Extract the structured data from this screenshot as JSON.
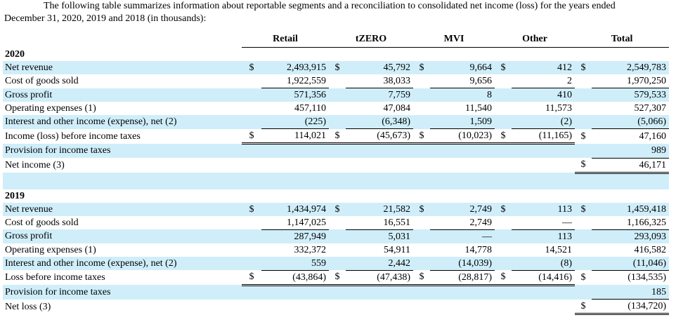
{
  "intro": {
    "line1": "The following table summarizes information about reportable segments and a reconciliation to consolidated net income (loss) for the years ended",
    "line2": "December 31, 2020, 2019 and 2018 (in thousands):"
  },
  "columns": [
    "Retail",
    "tZERO",
    "MVI",
    "Other",
    "Total"
  ],
  "currency_symbol": "$",
  "sections": [
    {
      "year": "2020",
      "rows": [
        {
          "label": "Net revenue",
          "values": [
            "2,493,915",
            "45,792",
            "9,664",
            "412",
            "2,549,783"
          ]
        },
        {
          "label": "Cost of goods sold",
          "values": [
            "1,922,559",
            "38,033",
            "9,656",
            "2",
            "1,970,250"
          ]
        },
        {
          "label": "Gross profit",
          "values": [
            "571,356",
            "7,759",
            "8",
            "410",
            "579,533"
          ]
        },
        {
          "label": "Operating expenses (1)",
          "values": [
            "457,110",
            "47,084",
            "11,540",
            "11,573",
            "527,307"
          ]
        },
        {
          "label": "Interest and other income (expense), net (2)",
          "values": [
            "(225)",
            "(6,348)",
            "1,509",
            "(2)",
            "(5,066)"
          ]
        },
        {
          "label": "Income (loss) before income taxes",
          "values": [
            "114,021",
            "(45,673)",
            "(10,023)",
            "(11,165)",
            "47,160"
          ]
        },
        {
          "label": "Provision for income taxes",
          "values": [
            "",
            "",
            "",
            "",
            "989"
          ]
        },
        {
          "label": "Net income (3)",
          "values": [
            "",
            "",
            "",
            "",
            "46,171"
          ]
        }
      ]
    },
    {
      "year": "2019",
      "rows": [
        {
          "label": "Net revenue",
          "values": [
            "1,434,974",
            "21,582",
            "2,749",
            "113",
            "1,459,418"
          ]
        },
        {
          "label": "Cost of goods sold",
          "values": [
            "1,147,025",
            "16,551",
            "2,749",
            "—",
            "1,166,325"
          ]
        },
        {
          "label": "Gross profit",
          "values": [
            "287,949",
            "5,031",
            "—",
            "113",
            "293,093"
          ]
        },
        {
          "label": "Operating expenses (1)",
          "values": [
            "332,372",
            "54,911",
            "14,778",
            "14,521",
            "416,582"
          ]
        },
        {
          "label": "Interest and other income (expense), net (2)",
          "values": [
            "559",
            "2,442",
            "(14,039)",
            "(8)",
            "(11,046)"
          ]
        },
        {
          "label": "Loss before income taxes",
          "values": [
            "(43,864)",
            "(47,438)",
            "(28,817)",
            "(14,416)",
            "(134,535)"
          ]
        },
        {
          "label": "Provision for income taxes",
          "values": [
            "",
            "",
            "",
            "",
            "185"
          ]
        },
        {
          "label": "Net loss (3)",
          "values": [
            "",
            "",
            "",
            "",
            "(134,720)"
          ]
        }
      ]
    }
  ]
}
